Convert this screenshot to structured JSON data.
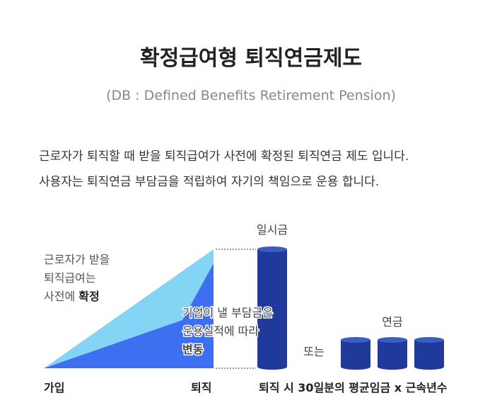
{
  "header": {
    "title": "확정급여형 퇴직연금제도",
    "subtitle": "(DB : Defined Benefits Retirement Pension)"
  },
  "description": [
    "근로자가 퇴직할 때 받을 퇴직급여가 사전에 확정된 퇴직연금 제도 입니다.",
    "사용자는 퇴직연금 부담금을 적립하여 자기의 책임으로 운용 합니다."
  ],
  "diagram": {
    "employee_note": [
      "근로자가 받을",
      "퇴직급여는",
      "사전에"
    ],
    "employee_note_emphasis": "확정",
    "employer_note": [
      "기업이 낼 부담금은",
      "운용실적에 따라"
    ],
    "employer_note_emphasis": "변동",
    "lump_sum": "일시금",
    "annuity": "연금",
    "or": "또는",
    "join": "가입",
    "retire": "퇴직",
    "formula": "퇴직 시 30일분의 평균임금 x 근속년수"
  }
}
